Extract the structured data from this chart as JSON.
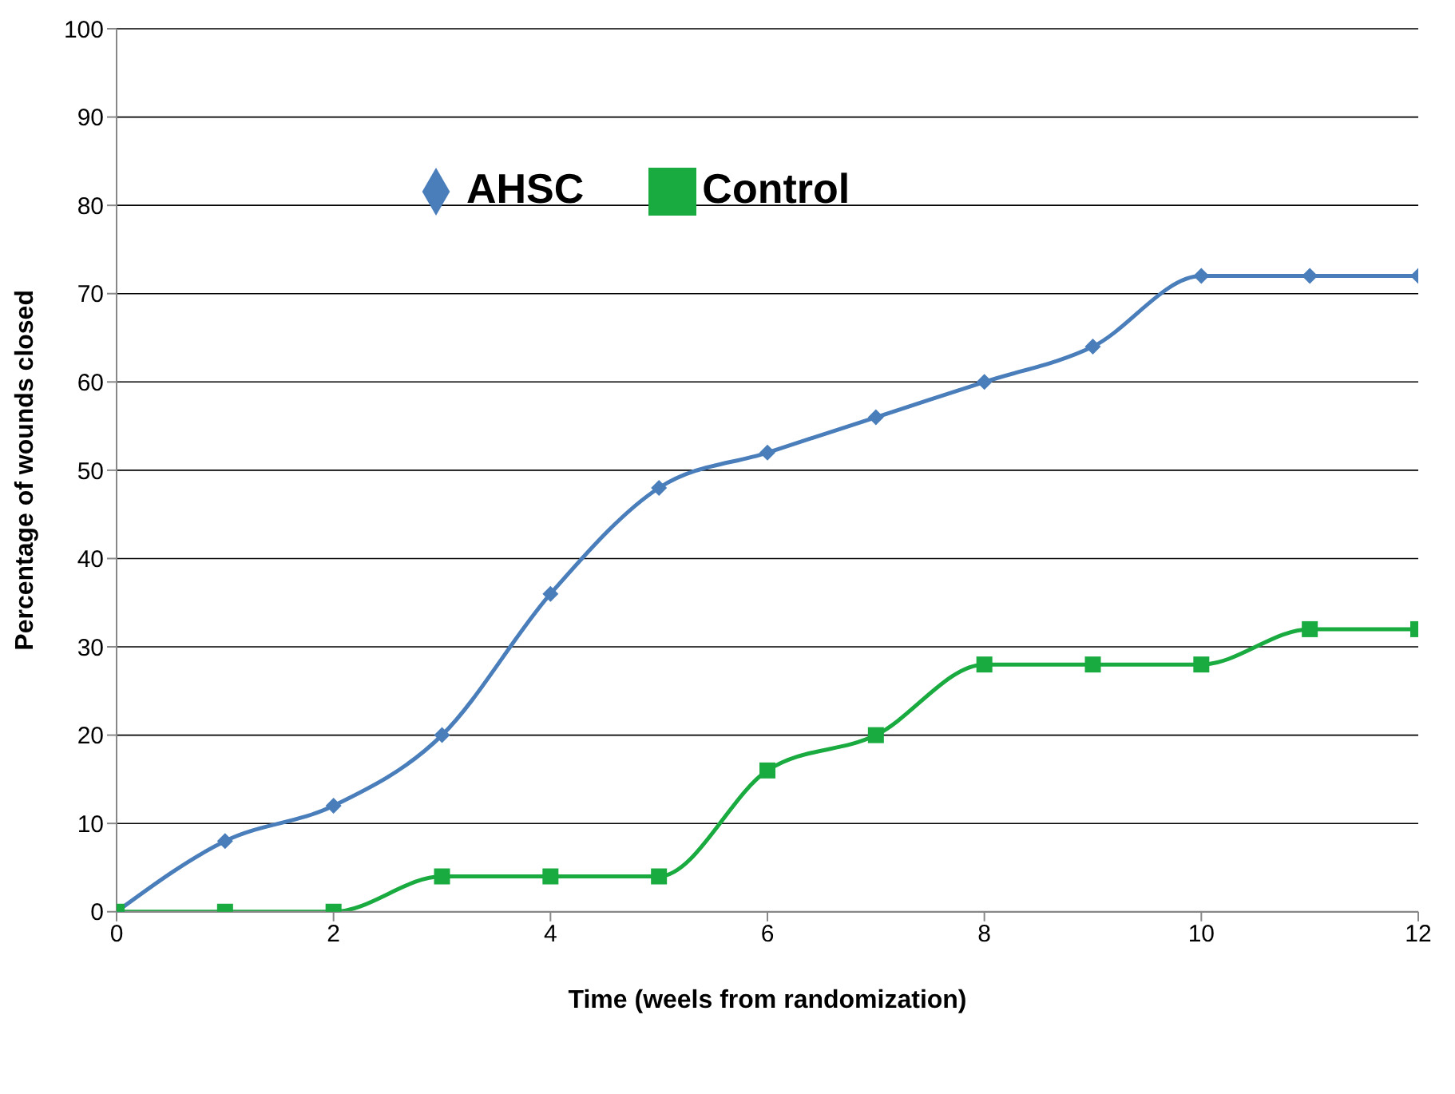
{
  "chart_data": {
    "type": "line",
    "xlabel": "Time (weels from randomization)",
    "ylabel": "Percentage of wounds closed",
    "x": [
      0,
      1,
      2,
      3,
      4,
      5,
      6,
      7,
      8,
      9,
      10,
      11,
      12
    ],
    "xlim": [
      0,
      12
    ],
    "xticks": [
      0,
      2,
      4,
      6,
      8,
      10,
      12
    ],
    "ylim": [
      0,
      100
    ],
    "yticks": [
      0,
      10,
      20,
      30,
      40,
      50,
      60,
      70,
      80,
      90,
      100
    ],
    "grid": "y",
    "legend": "top left",
    "series": [
      {
        "name": "AHSC",
        "color": "#4a7ebb",
        "marker": "diamond",
        "values": [
          0,
          8,
          12,
          20,
          36,
          48,
          52,
          56,
          60,
          64,
          72,
          72,
          72
        ]
      },
      {
        "name": "Control",
        "color": "#1aab40",
        "marker": "square",
        "values": [
          0,
          0,
          0,
          4,
          4,
          4,
          16,
          20,
          28,
          28,
          28,
          32,
          32
        ]
      }
    ]
  }
}
